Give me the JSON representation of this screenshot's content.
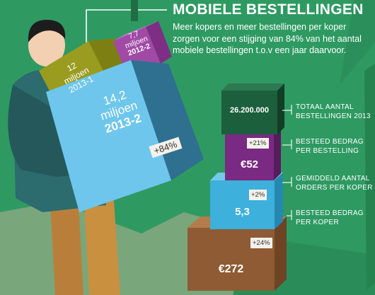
{
  "title": "MOBIELE BESTELLINGEN",
  "intro": "Meer kopers en meer bestellingen per koper zorgen voor een stijging van 84% van het aantal mobiele bestellingen t.o.v een jaar daarvoor.",
  "colors": {
    "background": "#2e9a62",
    "dark_green": "#1c5f3c",
    "purple": "#7a2a82",
    "sky": "#3db0dc",
    "brown": "#8f5b34",
    "olive": "#9a9c1f",
    "magenta": "#a04aa6",
    "light_blue": "#6ec6ec"
  },
  "chart_data": [
    {
      "type": "bar",
      "series": [
        {
          "label": "12 miljoen",
          "period": "2013-1",
          "value": 12
        },
        {
          "label": "7,7 miljoen",
          "period": "2012-2",
          "value": 7.7
        },
        {
          "label": "14,2 miljoen",
          "period": "2013-2",
          "value": 14.2,
          "change": "+84%"
        }
      ]
    },
    {
      "type": "table",
      "rows": [
        {
          "name": "TOTAAL AANTAL BESTELLINGEN 2013",
          "value": "26.200.000",
          "change": ""
        },
        {
          "name": "BESTEED BEDRAG PER BESTELLING",
          "value": "€52",
          "change": "+21%"
        },
        {
          "name": "GEMIDDELD AANTAL ORDERS PER KOPER",
          "value": "5,3",
          "change": "+2%"
        },
        {
          "name": "BESTEED BEDRAG PER KOPER",
          "value": "€272",
          "change": "+24%"
        }
      ]
    }
  ],
  "boxes": {
    "olive": {
      "line1": "12",
      "line2": "miljoen",
      "line3": "2013-1"
    },
    "magenta": {
      "line1": "7,7",
      "line2": "miljoen",
      "line3": "2012-2"
    },
    "blue": {
      "line1": "14,2",
      "line2": "miljoen",
      "line3": "2013-2",
      "pct": "+84%"
    }
  },
  "stack": {
    "total_value": "26.200.000",
    "total_label1": "TOTAAL AANTAL",
    "total_label2": "BESTELLINGEN 2013",
    "order_value": "€52",
    "order_pct": "+21%",
    "order_label1": "BESTEED BEDRAG",
    "order_label2": "PER BESTELLING",
    "orders_value": "5,3",
    "orders_pct": "+2%",
    "orders_label1": "GEMIDDELD AANTAL",
    "orders_label2": "ORDERS PER KOPER",
    "spend_value": "€272",
    "spend_pct": "+24%",
    "spend_label1": "BESTEED BEDRAG",
    "spend_label2": "PER KOPER"
  }
}
